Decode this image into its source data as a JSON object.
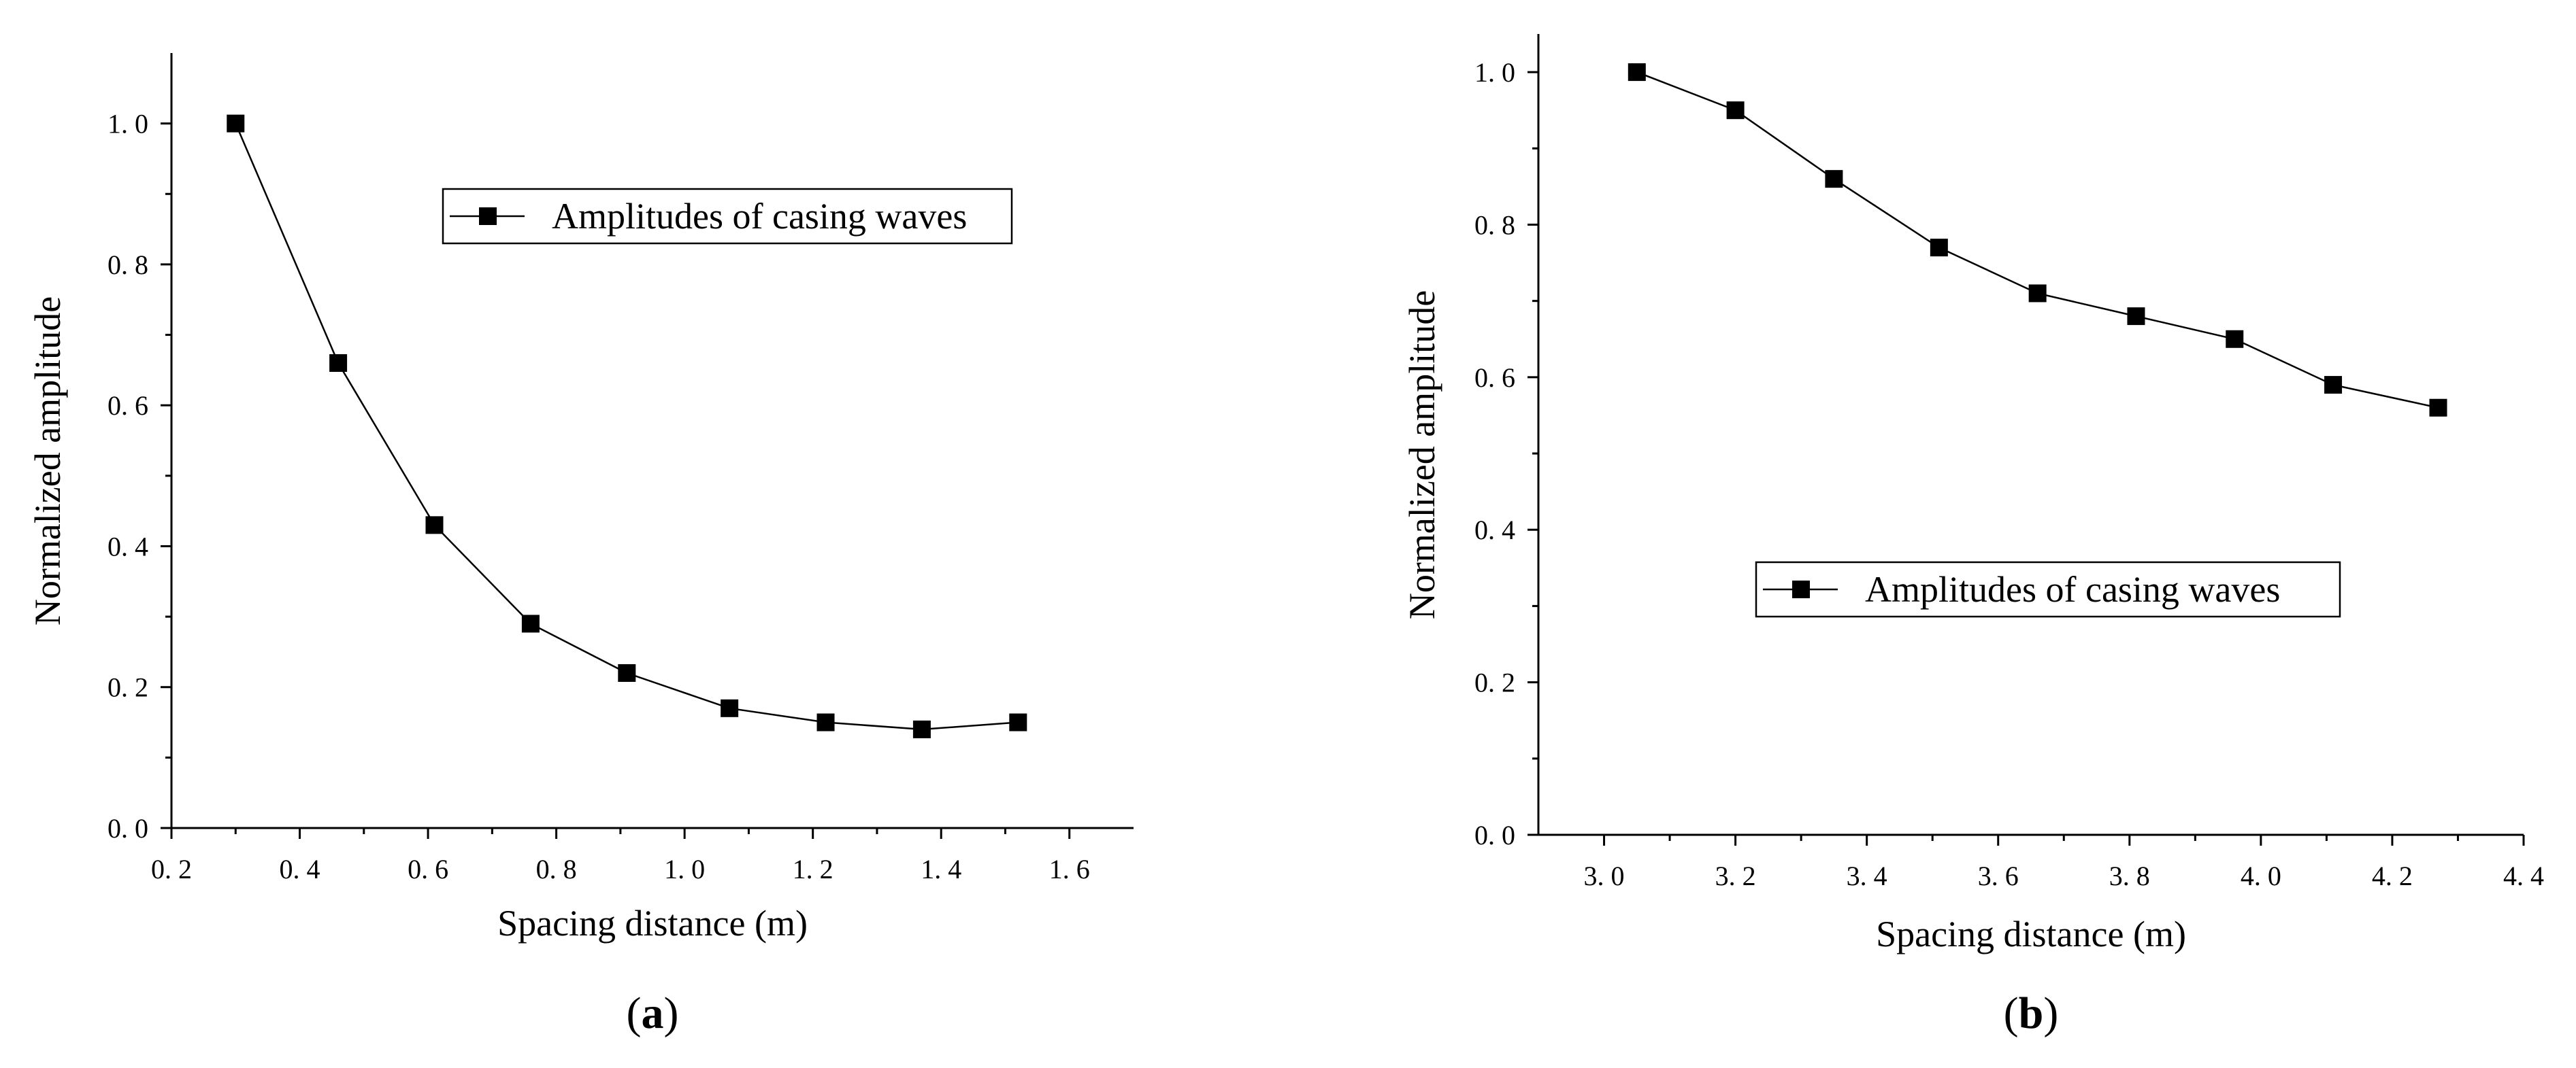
{
  "chart_data": [
    {
      "type": "line",
      "panel_label": "(a)",
      "panel_label_bold": "a",
      "xlabel": "Spacing distance (m)",
      "ylabel": "Normalized amplitude",
      "xlim": [
        0.2,
        1.7
      ],
      "ylim": [
        0.0,
        1.1
      ],
      "x_ticks": [
        0.2,
        0.4,
        0.6,
        0.8,
        1.0,
        1.2,
        1.4,
        1.6
      ],
      "x_tick_labels": [
        "0. 2",
        "0. 4",
        "0. 6",
        "0. 8",
        "1. 0",
        "1. 2",
        "1. 4",
        "1. 6"
      ],
      "y_ticks": [
        0.0,
        0.2,
        0.4,
        0.6,
        0.8,
        1.0
      ],
      "y_tick_labels": [
        "0. 0",
        "0. 2",
        "0. 4",
        "0. 6",
        "0. 8",
        "1. 0"
      ],
      "legend_position": "top-right",
      "series": [
        {
          "name": "Amplitudes of casing waves",
          "marker": "square",
          "x": [
            0.3,
            0.46,
            0.61,
            0.76,
            0.91,
            1.07,
            1.22,
            1.37,
            1.52
          ],
          "values": [
            1.0,
            0.66,
            0.43,
            0.29,
            0.22,
            0.17,
            0.15,
            0.14,
            0.15
          ]
        }
      ]
    },
    {
      "type": "line",
      "panel_label": "(b)",
      "panel_label_bold": "b",
      "xlabel": "Spacing distance (m)",
      "ylabel": "Normalized amplitude",
      "xlim": [
        2.9,
        4.4
      ],
      "ylim": [
        0.0,
        1.05
      ],
      "x_ticks": [
        3.0,
        3.2,
        3.4,
        3.6,
        3.8,
        4.0,
        4.2,
        4.4
      ],
      "x_tick_labels": [
        "3. 0",
        "3. 2",
        "3. 4",
        "3. 6",
        "3. 8",
        "4. 0",
        "4. 2",
        "4. 4"
      ],
      "y_ticks": [
        0.0,
        0.2,
        0.4,
        0.6,
        0.8,
        1.0
      ],
      "y_tick_labels": [
        "0. 0",
        "0. 2",
        "0. 4",
        "0. 6",
        "0. 8",
        "1. 0"
      ],
      "legend_position": "center",
      "series": [
        {
          "name": "Amplitudes of casing waves",
          "marker": "square",
          "x": [
            3.05,
            3.2,
            3.35,
            3.51,
            3.66,
            3.81,
            3.96,
            4.11,
            4.27
          ],
          "values": [
            1.0,
            0.95,
            0.86,
            0.77,
            0.71,
            0.68,
            0.65,
            0.59,
            0.56
          ]
        }
      ]
    }
  ]
}
